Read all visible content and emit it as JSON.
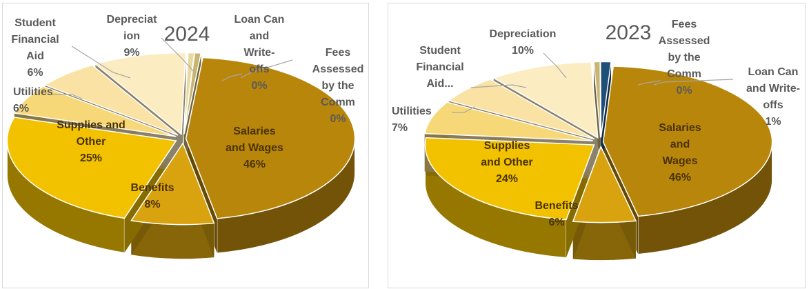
{
  "chart_data": [
    {
      "type": "pie",
      "title": "2024",
      "slices": [
        {
          "label": "Salaries and Wages",
          "value": 46,
          "label_text": "Salaries\nand Wages\n46%",
          "color": "#b8860b"
        },
        {
          "label": "Benefits",
          "value": 8,
          "label_text": "Benefits\n8%",
          "color": "#d9a30f"
        },
        {
          "label": "Supplies and Other",
          "value": 25,
          "label_text": "Supplies and\nOther\n25%",
          "color": "#f2c200"
        },
        {
          "label": "Utilities",
          "value": 6,
          "label_text": "Utilities\n6%",
          "color": "#f7d878"
        },
        {
          "label": "Student Financial Aid",
          "value": 6,
          "label_text": "Student\nFinancial\nAid\n6%",
          "color": "#f9e2a3"
        },
        {
          "label": "Depreciation",
          "value": 9,
          "label_text": "Depreciat\nion\n9%",
          "color": "#fbecc2"
        },
        {
          "label": "Loan Can and Write-offs",
          "value": 0,
          "label_text": "Loan Can\nand\nWrite-\noffs\n0%",
          "color": "#e8d9a0"
        },
        {
          "label": "Fees Assessed by the Comm",
          "value": 0,
          "label_text": "Fees\nAssessed\nby the\nComm\n0%",
          "color": "#c8b570"
        }
      ]
    },
    {
      "type": "pie",
      "title": "2023",
      "slices": [
        {
          "label": "Salaries and Wages",
          "value": 46,
          "label_text": "Salaries\nand\nWages\n46%",
          "color": "#b8860b"
        },
        {
          "label": "Benefits",
          "value": 6,
          "label_text": "Benefits\n6%",
          "color": "#d9a30f"
        },
        {
          "label": "Supplies and Other",
          "value": 24,
          "label_text": "Supplies\nand Other\n24%",
          "color": "#f2c200"
        },
        {
          "label": "Utilities",
          "value": 7,
          "label_text": "Utilities\n7%",
          "color": "#f7d878"
        },
        {
          "label": "Student Financial Aid...",
          "value": 6,
          "label_text": "Student\nFinancial\nAid...",
          "color": "#f9e2a3"
        },
        {
          "label": "Depreciation",
          "value": 10,
          "label_text": "Depreciation\n10%",
          "color": "#fbecc2"
        },
        {
          "label": "Fees Assessed by the Comm",
          "value": 0,
          "label_text": "Fees\nAssessed\nby the\nComm\n0%",
          "color": "#c8b570"
        },
        {
          "label": "Loan Can and Write-offs",
          "value": 1,
          "label_text": "Loan Can\nand Write-\noffs\n1%",
          "color": "#1f4e79"
        }
      ]
    }
  ]
}
